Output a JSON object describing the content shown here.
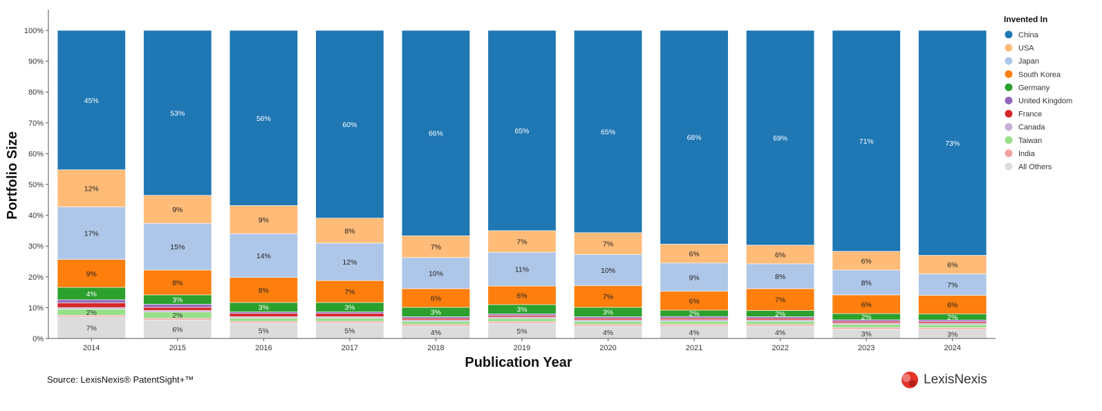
{
  "chart_data": {
    "type": "bar",
    "stacked": true,
    "xlabel": "Publication Year",
    "ylabel": "Portfolio Size",
    "ylim": [
      0,
      100
    ],
    "y_ticks": [
      "0%",
      "10%",
      "20%",
      "30%",
      "40%",
      "50%",
      "60%",
      "70%",
      "80%",
      "90%",
      "100%"
    ],
    "categories": [
      "2014",
      "2015",
      "2016",
      "2017",
      "2018",
      "2019",
      "2020",
      "2021",
      "2022",
      "2023",
      "2024"
    ],
    "legend_title": "Invented In",
    "legend_position": "right",
    "series": [
      {
        "name": "All Others",
        "color": "#dcdcdc",
        "label_color": "#333333",
        "values": [
          7,
          6,
          5,
          5,
          4,
          5,
          4,
          4,
          4,
          3,
          3
        ],
        "labels": [
          "7%",
          "6%",
          "5%",
          "5%",
          "4%",
          "5%",
          "4%",
          "4%",
          "4%",
          "3%",
          "3%"
        ]
      },
      {
        "name": "India",
        "color": "#f4a0a0",
        "label_color": "#333333",
        "values": [
          0.5,
          0.5,
          0.5,
          0.5,
          0.5,
          0.5,
          0.5,
          0.5,
          0.5,
          0.5,
          0.5
        ],
        "labels": [
          "",
          "",
          "",
          "",
          "",
          "",
          "",
          "",
          "",
          "",
          ""
        ]
      },
      {
        "name": "Taiwan",
        "color": "#98df8a",
        "label_color": "#333333",
        "values": [
          2,
          2,
          1,
          1,
          1,
          1,
          1,
          1,
          1,
          1,
          1
        ],
        "labels": [
          "2%",
          "2%",
          "",
          "",
          "",
          "",
          "",
          "",
          "",
          "",
          ""
        ]
      },
      {
        "name": "Canada",
        "color": "#c5b0d5",
        "label_color": "#333333",
        "values": [
          0.5,
          0.5,
          0.5,
          0.5,
          0.5,
          0.5,
          0.5,
          0.5,
          0.5,
          0.5,
          0.5
        ],
        "labels": [
          "",
          "",
          "",
          "",
          "",
          "",
          "",
          "",
          "",
          "",
          ""
        ]
      },
      {
        "name": "France",
        "color": "#d62728",
        "label_color": "#ffffff",
        "values": [
          1.5,
          1,
          1,
          1,
          0.5,
          0.5,
          0.5,
          0.5,
          0.5,
          0.5,
          0.5
        ],
        "labels": [
          "",
          "",
          "",
          "",
          "",
          "",
          "",
          "",
          "",
          "",
          ""
        ]
      },
      {
        "name": "United Kingdom",
        "color": "#9467bd",
        "label_color": "#ffffff",
        "values": [
          1,
          1,
          0.5,
          0.5,
          0.5,
          0.5,
          0.5,
          0.5,
          0.5,
          0.5,
          0.5
        ],
        "labels": [
          "",
          "",
          "",
          "",
          "",
          "",
          "",
          "",
          "",
          "",
          ""
        ]
      },
      {
        "name": "Germany",
        "color": "#2ca02c",
        "label_color": "#ffffff",
        "values": [
          4,
          3,
          3,
          3,
          3,
          3,
          3,
          2,
          2,
          2,
          2
        ],
        "labels": [
          "4%",
          "3%",
          "3%",
          "3%",
          "3%",
          "3%",
          "3%",
          "2%",
          "2%",
          "2%",
          "2%"
        ]
      },
      {
        "name": "South Korea",
        "color": "#ff7f0e",
        "label_color": "#222222",
        "values": [
          9,
          8,
          8,
          7,
          6,
          6,
          7,
          6,
          7,
          6,
          6
        ],
        "labels": [
          "9%",
          "8%",
          "8%",
          "7%",
          "6%",
          "6%",
          "7%",
          "6%",
          "7%",
          "6%",
          "6%"
        ]
      },
      {
        "name": "Japan",
        "color": "#aec7e8",
        "label_color": "#222222",
        "values": [
          17,
          15,
          14,
          12,
          10,
          11,
          10,
          9,
          8,
          8,
          7
        ],
        "labels": [
          "17%",
          "15%",
          "14%",
          "12%",
          "10%",
          "11%",
          "10%",
          "9%",
          "8%",
          "8%",
          "7%"
        ]
      },
      {
        "name": "USA",
        "color": "#ffbb78",
        "label_color": "#222222",
        "values": [
          12,
          9,
          9,
          8,
          7,
          7,
          7,
          6,
          6,
          6,
          6
        ],
        "labels": [
          "12%",
          "9%",
          "9%",
          "8%",
          "7%",
          "7%",
          "7%",
          "6%",
          "6%",
          "6%",
          "6%"
        ]
      },
      {
        "name": "China",
        "color": "#1f77b4",
        "label_color": "#ffffff",
        "values": [
          45,
          53,
          56,
          60,
          66,
          65,
          65,
          68,
          69,
          71,
          73
        ],
        "labels": [
          "45%",
          "53%",
          "56%",
          "60%",
          "66%",
          "65%",
          "65%",
          "68%",
          "69%",
          "71%",
          "73%"
        ]
      }
    ],
    "legend_order": [
      "China",
      "USA",
      "Japan",
      "South Korea",
      "Germany",
      "United Kingdom",
      "France",
      "Canada",
      "Taiwan",
      "India",
      "All Others"
    ]
  },
  "footer": {
    "source": "Source: LexisNexis® PatentSight+™",
    "logo_text": "LexisNexis",
    "logo_mark": "lexisnexis-logo-icon"
  }
}
